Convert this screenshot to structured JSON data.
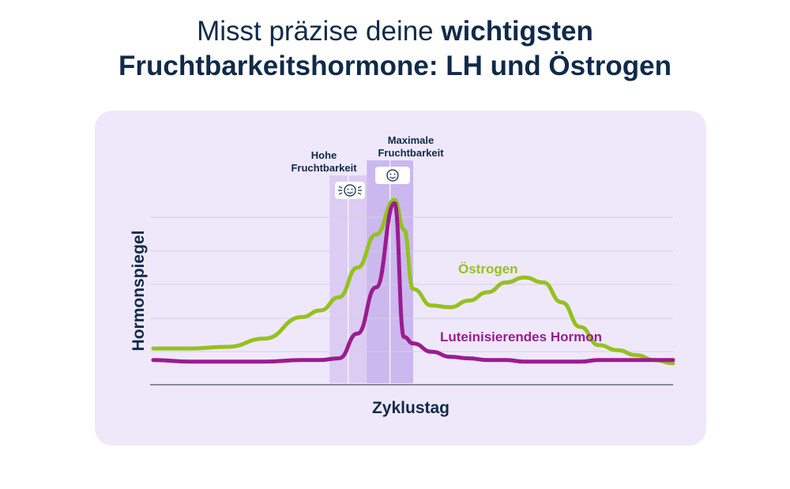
{
  "header": {
    "title_line1_light": "Misst präzise deine ",
    "title_line1_bold": "wichtigsten",
    "title_line2_bold": "Fruchtbarkeitshormone: LH und Östrogen"
  },
  "chart_data": {
    "type": "line",
    "title": "Misst präzise deine wichtigsten Fruchtbarkeitshormone: LH und Östrogen",
    "xlabel": "Zyklustag",
    "ylabel": "Hormonspiegel",
    "x_ticks_shown": false,
    "y_ticks_shown": false,
    "xlim": [
      0,
      28
    ],
    "ylim": [
      0,
      100
    ],
    "grid": true,
    "x": [
      0,
      2,
      4,
      6,
      8,
      9,
      10,
      11,
      12,
      13,
      13.5,
      14,
      15,
      16,
      17,
      18,
      19,
      20,
      21,
      22,
      23,
      24,
      25,
      26,
      27,
      28
    ],
    "series": [
      {
        "name": "Östrogen",
        "color": "#94c11f",
        "values": [
          21,
          21,
          22,
          27,
          40,
          44,
          52,
          70,
          90,
          111,
          93,
          57,
          47,
          46,
          50,
          55,
          61,
          64,
          61,
          49,
          34,
          23,
          20,
          17,
          14,
          12
        ]
      },
      {
        "name": "Luteinisierendes Hormon",
        "color": "#9b1c8f",
        "values": [
          14,
          13,
          13,
          13,
          14,
          14,
          15,
          30,
          58,
          109,
          28,
          24,
          19,
          16,
          15,
          14,
          14,
          13,
          13,
          13,
          13,
          14,
          14,
          14,
          14,
          14
        ]
      }
    ],
    "bands": [
      {
        "label_line1": "Hohe",
        "label_line2": "Fruchtbarkeit",
        "from": 9.5,
        "to": 11.5,
        "icon": "sparkle-smiley-icon"
      },
      {
        "label_line1": "Maximale",
        "label_line2": "Fruchtbarkeit",
        "from": 11.5,
        "to": 14,
        "icon": "smiley-icon"
      }
    ]
  },
  "colors": {
    "panel": "#efe8fb",
    "band_high": "#d9c9f2",
    "band_max": "#c7b2ec",
    "text": "#0f2a4a"
  }
}
